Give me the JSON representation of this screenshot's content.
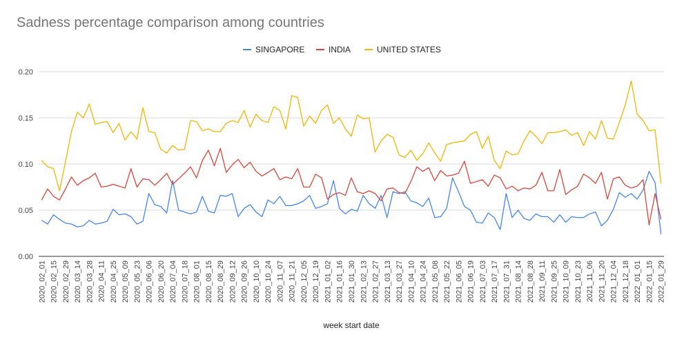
{
  "chart_data": {
    "type": "line",
    "title": "Sadness percentage comparison among countries",
    "xlabel": "week start date",
    "ylabel": "",
    "ylim": [
      0,
      0.2
    ],
    "yticks": [
      "0.00",
      "0.05",
      "0.10",
      "0.15",
      "0.20"
    ],
    "grid": true,
    "legend_position": "top",
    "x": [
      "2020_02_01",
      "2020_02_08",
      "2020_02_15",
      "2020_02_22",
      "2020_02_29",
      "2020_03_07",
      "2020_03_14",
      "2020_03_21",
      "2020_03_28",
      "2020_04_04",
      "2020_04_11",
      "2020_04_18",
      "2020_04_25",
      "2020_05_02",
      "2020_05_09",
      "2020_05_16",
      "2020_05_23",
      "2020_05_30",
      "2020_06_06",
      "2020_06_13",
      "2020_06_20",
      "2020_06_27",
      "2020_07_04",
      "2020_07_11",
      "2020_07_18",
      "2020_07_25",
      "2020_08_01",
      "2020_08_08",
      "2020_08_15",
      "2020_08_22",
      "2020_08_29",
      "2020_09_05",
      "2020_09_12",
      "2020_09_19",
      "2020_09_26",
      "2020_10_03",
      "2020_10_10",
      "2020_10_17",
      "2020_10_24",
      "2020_10_31",
      "2020_11_07",
      "2020_11_14",
      "2020_11_21",
      "2020_11_28",
      "2020_12_05",
      "2020_12_12",
      "2020_12_19",
      "2020_12_26",
      "2021_01_02",
      "2021_01_09",
      "2021_01_16",
      "2021_01_23",
      "2021_01_30",
      "2021_02_06",
      "2021_02_13",
      "2021_02_20",
      "2021_02_27",
      "2021_03_06",
      "2021_03_13",
      "2021_03_20",
      "2021_03_27",
      "2021_04_03",
      "2021_04_10",
      "2021_04_17",
      "2021_04_24",
      "2021_05_01",
      "2021_05_08",
      "2021_05_15",
      "2021_05_22",
      "2021_05_29",
      "2021_06_05",
      "2021_06_12",
      "2021_06_19",
      "2021_06_26",
      "2021_07_03",
      "2021_07_10",
      "2021_07_17",
      "2021_07_24",
      "2021_07_31",
      "2021_08_07",
      "2021_08_14",
      "2021_08_21",
      "2021_08_28",
      "2021_09_04",
      "2021_09_11",
      "2021_09_18",
      "2021_09_25",
      "2021_10_02",
      "2021_10_09",
      "2021_10_16",
      "2021_10_23",
      "2021_10_30",
      "2021_11_06",
      "2021_11_13",
      "2021_11_20",
      "2021_11_27",
      "2021_12_04",
      "2021_12_11",
      "2021_12_18",
      "2021_12_25",
      "2022_01_01",
      "2022_01_08",
      "2022_01_15",
      "2022_01_22",
      "2022_01_29"
    ],
    "series": [
      {
        "name": "SINGAPORE",
        "color": "#4285f4",
        "values": [
          0.039,
          0.035,
          0.045,
          0.04,
          0.036,
          0.035,
          0.032,
          0.033,
          0.039,
          0.035,
          0.036,
          0.038,
          0.051,
          0.045,
          0.046,
          0.043,
          0.035,
          0.038,
          0.068,
          0.056,
          0.054,
          0.047,
          0.082,
          0.05,
          0.048,
          0.046,
          0.048,
          0.065,
          0.049,
          0.047,
          0.066,
          0.065,
          0.068,
          0.043,
          0.052,
          0.056,
          0.048,
          0.043,
          0.061,
          0.057,
          0.065,
          0.055,
          0.055,
          0.057,
          0.06,
          0.066,
          0.052,
          0.054,
          0.057,
          0.082,
          0.052,
          0.046,
          0.051,
          0.049,
          0.066,
          0.057,
          0.052,
          0.066,
          0.042,
          0.07,
          0.068,
          0.07,
          0.06,
          0.058,
          0.054,
          0.063,
          0.042,
          0.043,
          0.052,
          0.085,
          0.07,
          0.054,
          0.05,
          0.037,
          0.036,
          0.047,
          0.042,
          0.029,
          0.068,
          0.042,
          0.05,
          0.041,
          0.039,
          0.046,
          0.043,
          0.043,
          0.037,
          0.045,
          0.037,
          0.043,
          0.042,
          0.042,
          0.046,
          0.048,
          0.033,
          0.039,
          0.051,
          0.069,
          0.064,
          0.068,
          0.062,
          0.072,
          0.092,
          0.08,
          0.024
        ]
      },
      {
        "name": "INDIA",
        "color": "#db4437",
        "values": [
          0.061,
          0.073,
          0.065,
          0.061,
          0.073,
          0.086,
          0.077,
          0.082,
          0.085,
          0.09,
          0.075,
          0.076,
          0.078,
          0.076,
          0.074,
          0.095,
          0.075,
          0.084,
          0.083,
          0.077,
          0.083,
          0.09,
          0.078,
          0.084,
          0.09,
          0.097,
          0.085,
          0.104,
          0.115,
          0.098,
          0.117,
          0.091,
          0.099,
          0.105,
          0.096,
          0.102,
          0.092,
          0.087,
          0.091,
          0.095,
          0.083,
          0.086,
          0.084,
          0.095,
          0.075,
          0.075,
          0.089,
          0.085,
          0.062,
          0.067,
          0.069,
          0.066,
          0.085,
          0.07,
          0.068,
          0.071,
          0.068,
          0.06,
          0.073,
          0.074,
          0.069,
          0.068,
          0.081,
          0.097,
          0.092,
          0.096,
          0.082,
          0.093,
          0.087,
          0.088,
          0.09,
          0.103,
          0.079,
          0.081,
          0.083,
          0.076,
          0.088,
          0.085,
          0.073,
          0.076,
          0.071,
          0.074,
          0.073,
          0.077,
          0.091,
          0.071,
          0.071,
          0.094,
          0.067,
          0.072,
          0.076,
          0.089,
          0.085,
          0.079,
          0.091,
          0.062,
          0.084,
          0.086,
          0.077,
          0.074,
          0.076,
          0.083,
          0.034,
          0.068,
          0.04
        ]
      },
      {
        "name": "UNITED STATES",
        "color": "#f4b400",
        "values": [
          0.104,
          0.097,
          0.095,
          0.071,
          0.102,
          0.135,
          0.156,
          0.15,
          0.165,
          0.143,
          0.145,
          0.146,
          0.134,
          0.144,
          0.126,
          0.135,
          0.127,
          0.161,
          0.135,
          0.134,
          0.116,
          0.112,
          0.12,
          0.115,
          0.116,
          0.147,
          0.146,
          0.136,
          0.138,
          0.135,
          0.135,
          0.144,
          0.147,
          0.145,
          0.158,
          0.14,
          0.154,
          0.147,
          0.145,
          0.162,
          0.158,
          0.138,
          0.174,
          0.172,
          0.141,
          0.152,
          0.144,
          0.158,
          0.164,
          0.144,
          0.15,
          0.138,
          0.13,
          0.153,
          0.149,
          0.15,
          0.113,
          0.125,
          0.132,
          0.129,
          0.11,
          0.107,
          0.115,
          0.104,
          0.111,
          0.123,
          0.112,
          0.103,
          0.121,
          0.123,
          0.124,
          0.125,
          0.132,
          0.135,
          0.117,
          0.13,
          0.104,
          0.095,
          0.114,
          0.11,
          0.111,
          0.125,
          0.136,
          0.13,
          0.122,
          0.134,
          0.134,
          0.135,
          0.137,
          0.131,
          0.134,
          0.12,
          0.135,
          0.127,
          0.147,
          0.128,
          0.127,
          0.145,
          0.164,
          0.19,
          0.154,
          0.147,
          0.136,
          0.137,
          0.079
        ]
      }
    ]
  }
}
